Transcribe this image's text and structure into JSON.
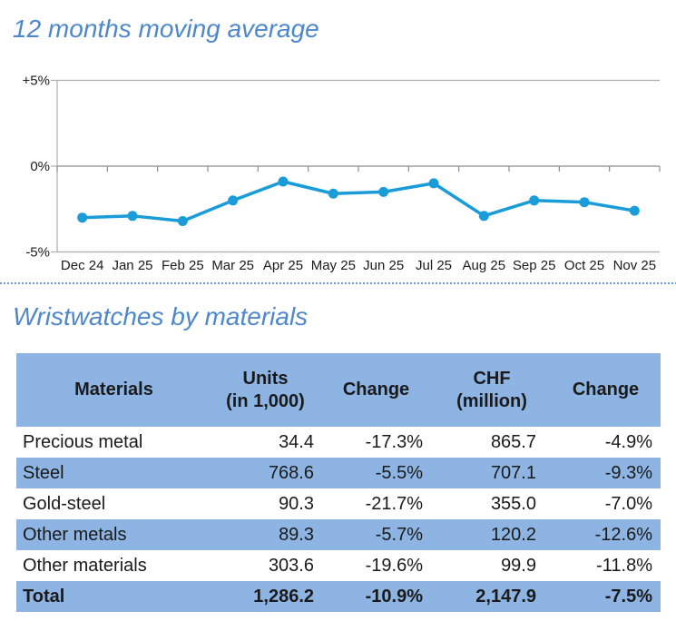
{
  "colors": {
    "title_blue": "#4e87cb",
    "line_blue": "#199cd8",
    "table_band_blue": "#8db4e2",
    "gridline_gray": "#adadad",
    "zero_axis_gray": "#8c8c8c",
    "divider_blue": "#6f9ad8"
  },
  "chart_data": {
    "type": "line",
    "title": "12 months moving average",
    "categories": [
      "Dec 24",
      "Jan 25",
      "Feb 25",
      "Mar 25",
      "Apr 25",
      "May 25",
      "Jun 25",
      "Jul 25",
      "Aug 25",
      "Sep 25",
      "Oct 25",
      "Nov 25"
    ],
    "series": [
      {
        "name": "12 months moving average",
        "values": [
          -3.0,
          -2.9,
          -3.2,
          -2.0,
          -0.9,
          -1.6,
          -1.5,
          -1.0,
          -2.9,
          -2.0,
          -2.1,
          -2.6
        ]
      }
    ],
    "xlabel": "",
    "ylabel": "",
    "ylim": [
      -5,
      5
    ],
    "yticks": [
      {
        "label": "+5%",
        "value": 5
      },
      {
        "label": "0%",
        "value": 0
      },
      {
        "label": "-5%",
        "value": -5
      }
    ],
    "grid": true,
    "legend": "none",
    "marker": "circle"
  },
  "table": {
    "title": "Wristwatches by materials",
    "columns": [
      {
        "label": "Materials"
      },
      {
        "label": "Units",
        "sub": "(in 1,000)"
      },
      {
        "label": "Change"
      },
      {
        "label": "CHF",
        "sub": "(million)"
      },
      {
        "label": "Change"
      }
    ],
    "rows": [
      {
        "cells": [
          "Precious metal",
          "34.4",
          "-17.3%",
          "865.7",
          "-4.9%"
        ],
        "total": false
      },
      {
        "cells": [
          "Steel",
          "768.6",
          "-5.5%",
          "707.1",
          "-9.3%"
        ],
        "total": false
      },
      {
        "cells": [
          "Gold-steel",
          "90.3",
          "-21.7%",
          "355.0",
          "-7.0%"
        ],
        "total": false
      },
      {
        "cells": [
          "Other metals",
          "89.3",
          "-5.7%",
          "120.2",
          "-12.6%"
        ],
        "total": false
      },
      {
        "cells": [
          "Other materials",
          "303.6",
          "-19.6%",
          "99.9",
          "-11.8%"
        ],
        "total": false
      },
      {
        "cells": [
          "Total",
          "1,286.2",
          "-10.9%",
          "2,147.9",
          "-7.5%"
        ],
        "total": true
      }
    ]
  }
}
